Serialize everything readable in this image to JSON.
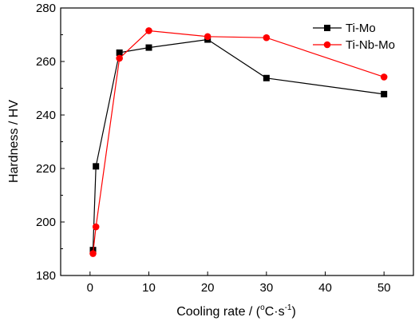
{
  "chart_data": {
    "type": "line",
    "title": "",
    "xlabel": {
      "prefix": "Cooling rate / (",
      "sup1": "o",
      "mid": "C·s",
      "sup2": "-1",
      "suffix": ")"
    },
    "ylabel": "Hardness / HV",
    "xlim": [
      -5,
      55
    ],
    "ylim": [
      180,
      280
    ],
    "xticks": [
      0,
      10,
      20,
      30,
      40,
      50
    ],
    "yticks": [
      180,
      200,
      220,
      240,
      260,
      280
    ],
    "grid": false,
    "legend_position": "top-right",
    "series": [
      {
        "name": "Ti-Mo",
        "color": "#000000",
        "marker": "square",
        "x": [
          0.5,
          1,
          5,
          10,
          20,
          30,
          50
        ],
        "y": [
          189.5,
          220.8,
          263.3,
          265.2,
          268.2,
          253.8,
          247.8
        ]
      },
      {
        "name": "Ti-Nb-Mo",
        "color": "#ff0000",
        "marker": "circle",
        "x": [
          0.5,
          1,
          5,
          10,
          20,
          30,
          50
        ],
        "y": [
          188.2,
          198.2,
          261.2,
          271.5,
          269.3,
          268.9,
          254.2
        ]
      }
    ]
  }
}
